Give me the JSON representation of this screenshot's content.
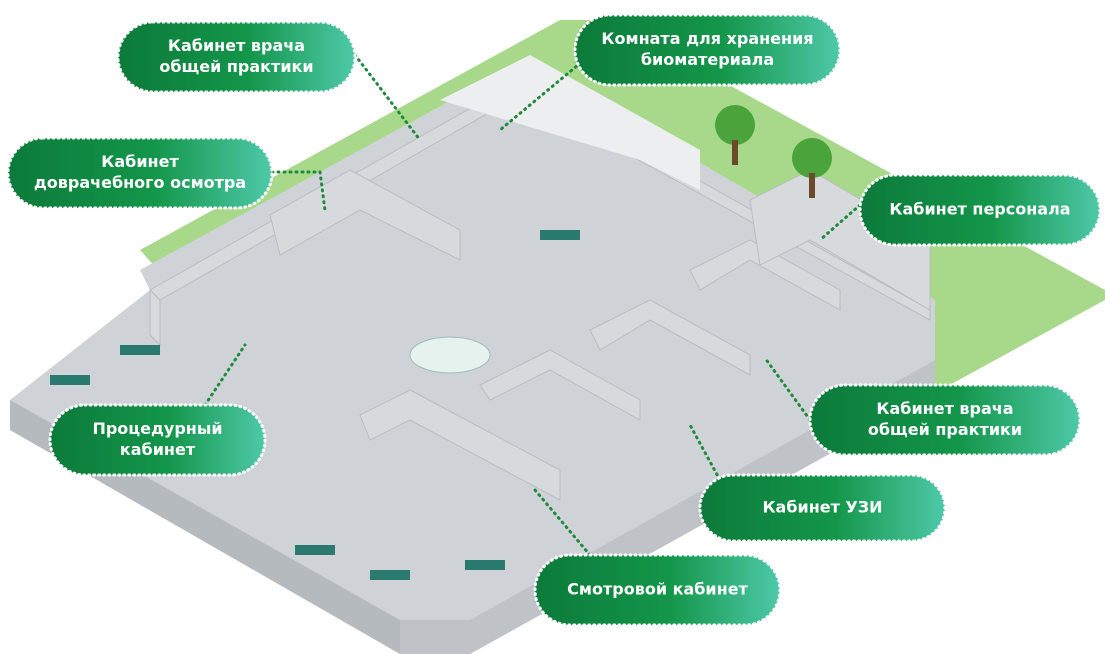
{
  "labels": [
    {
      "lines": [
        "Кабинет врача",
        "общей практики"
      ]
    },
    {
      "lines": [
        "Комната для хранения",
        "биоматериала"
      ]
    },
    {
      "lines": [
        "Кабинет",
        "доврачебного осмотра"
      ]
    },
    {
      "lines": [
        "Кабинет персонала"
      ]
    },
    {
      "lines": [
        "Процедурный",
        "кабинет"
      ]
    },
    {
      "lines": [
        "Кабинет врача",
        "общей практики"
      ]
    },
    {
      "lines": [
        "Кабинет УЗИ"
      ]
    },
    {
      "lines": [
        "Смотровой кабинет"
      ]
    }
  ]
}
